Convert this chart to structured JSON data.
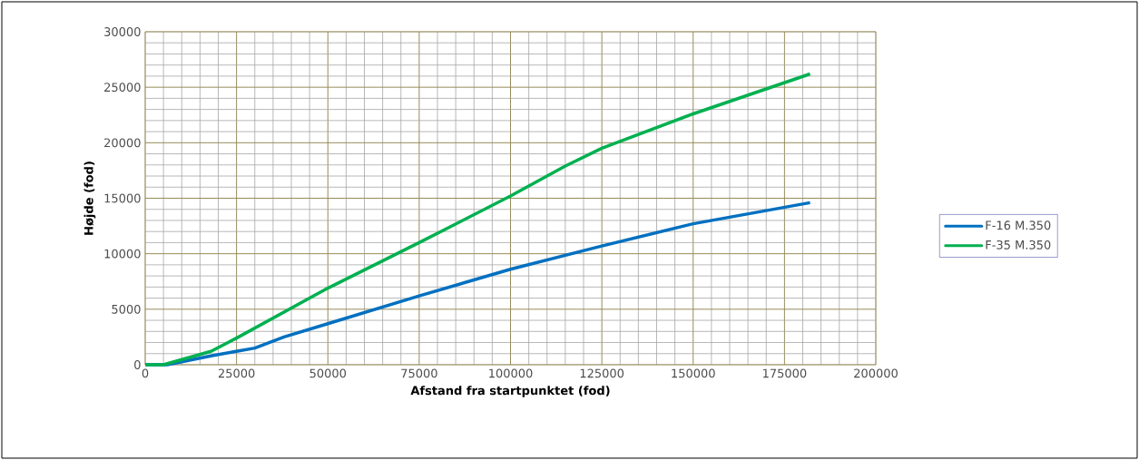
{
  "chart_data": {
    "type": "line",
    "xlabel": "Afstand fra startpunktet (fod)",
    "ylabel": "Højde (fod)",
    "xlim": [
      0,
      200000
    ],
    "ylim": [
      0,
      30000
    ],
    "xticks": [
      0,
      25000,
      50000,
      75000,
      100000,
      125000,
      150000,
      175000,
      200000
    ],
    "yticks": [
      0,
      5000,
      10000,
      15000,
      20000,
      25000,
      30000
    ],
    "grid": true,
    "legend": "right",
    "line_style": "solid",
    "series": [
      {
        "name": "F-16 M.350",
        "color": "#0070c0",
        "x": [
          0,
          6000,
          18000,
          30000,
          38000,
          50000,
          75000,
          100000,
          125000,
          150000,
          182000
        ],
        "values": [
          0,
          0,
          800,
          1500,
          2500,
          3700,
          6200,
          8600,
          10700,
          12700,
          14600
        ]
      },
      {
        "name": "F-35 M.350",
        "color": "#00b050",
        "x": [
          0,
          5000,
          18000,
          25000,
          50000,
          75000,
          100000,
          115000,
          125000,
          150000,
          182000
        ],
        "values": [
          0,
          0,
          1200,
          2400,
          6900,
          11000,
          15200,
          17900,
          19500,
          22600,
          26200
        ]
      }
    ]
  }
}
